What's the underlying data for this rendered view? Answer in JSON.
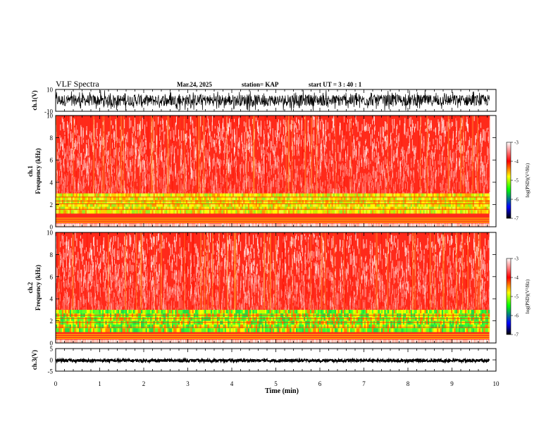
{
  "header": {
    "title": "VLF Spectra",
    "date": "Mar.24, 2025",
    "station": "station= KAP",
    "start": "start  UT =   3 : 40 : 1"
  },
  "chart_data": [
    {
      "type": "line",
      "name": "ch1-waveform",
      "ylabel": "ch.1(V)",
      "ylim": [
        -10,
        10
      ],
      "yticks": [
        10,
        -10
      ],
      "xlim": [
        0,
        10
      ],
      "x_data_end": 9.85,
      "signal": {
        "mean": 0,
        "amplitude_range": [
          -9.5,
          9.5
        ],
        "typical_range": [
          -6,
          6
        ]
      },
      "color": "#000000"
    },
    {
      "type": "heatmap",
      "name": "ch1-spectrogram",
      "ylabel_line1": "ch.1",
      "ylabel_line2": "Frequency (kHz)",
      "ylim": [
        0,
        10
      ],
      "yticks": [
        0,
        2,
        4,
        6,
        8,
        10
      ],
      "xlim": [
        0,
        10
      ],
      "x_data_end": 9.85,
      "bands": [
        {
          "range_khz": [
            0,
            0.3
          ],
          "level": "red-white"
        },
        {
          "range_khz": [
            0.3,
            1.2
          ],
          "level": "red"
        },
        {
          "range_khz": [
            1.2,
            3.0
          ],
          "level": "yellow-green"
        },
        {
          "range_khz": [
            3.0,
            10
          ],
          "level": "red-white"
        }
      ],
      "colorbar": {
        "label": "log(PSD)(V²/Hz)",
        "range": [
          -7,
          -3
        ],
        "ticks": [
          -3,
          -4,
          -5,
          -6,
          -7
        ],
        "colors": [
          "#ffffff",
          "#ff0000",
          "#ffff00",
          "#00ff00",
          "#0000ff",
          "#000000"
        ]
      }
    },
    {
      "type": "heatmap",
      "name": "ch2-spectrogram",
      "ylabel_line1": "ch.2",
      "ylabel_line2": "Frequency (kHz)",
      "ylim": [
        0,
        10
      ],
      "yticks": [
        0,
        2,
        4,
        6,
        8,
        10
      ],
      "xlim": [
        0,
        10
      ],
      "x_data_end": 9.85,
      "bands": [
        {
          "range_khz": [
            0,
            0.3
          ],
          "level": "red-white"
        },
        {
          "range_khz": [
            0.3,
            1.0
          ],
          "level": "red"
        },
        {
          "range_khz": [
            1.0,
            3.0
          ],
          "level": "green-yellow"
        },
        {
          "range_khz": [
            3.0,
            10
          ],
          "level": "red-white"
        }
      ],
      "colorbar": {
        "label": "log(PSD)(V²/Hz)",
        "range": [
          -7,
          -3
        ],
        "ticks": [
          -3,
          -4,
          -5,
          -6,
          -7
        ],
        "colors": [
          "#ffffff",
          "#ff0000",
          "#ffff00",
          "#00ff00",
          "#0000ff",
          "#000000"
        ]
      }
    },
    {
      "type": "line",
      "name": "ch3-waveform",
      "ylabel": "ch.3(V)",
      "ylim": [
        -5,
        5
      ],
      "yticks": [
        5,
        0,
        -5
      ],
      "xlim": [
        0,
        10
      ],
      "x_data_end": 9.85,
      "signal": {
        "mean": -0.3,
        "amplitude_range": [
          -1.2,
          0.6
        ]
      },
      "color": "#000000"
    }
  ],
  "xaxis": {
    "label": "Time (min)",
    "ticks": [
      0,
      1,
      2,
      3,
      4,
      5,
      6,
      7,
      8,
      9,
      10
    ]
  }
}
